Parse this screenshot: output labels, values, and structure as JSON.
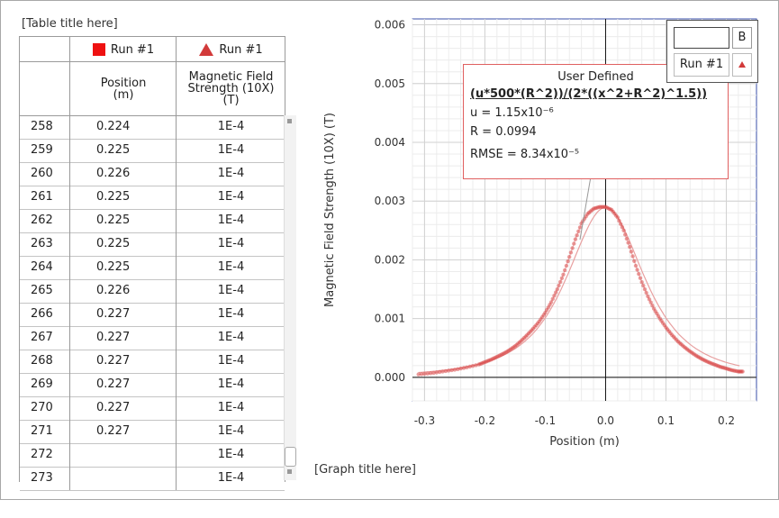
{
  "table": {
    "title": "[Table title here]",
    "run1_label": "Run #1",
    "run2_label": "Run #1",
    "col_position": "Position\n(m)",
    "col_field": "Magnetic Field\nStrength (10X)\n(T)",
    "rows": [
      {
        "n": "258",
        "p": "0.224",
        "m": "1E-4"
      },
      {
        "n": "259",
        "p": "0.225",
        "m": "1E-4"
      },
      {
        "n": "260",
        "p": "0.226",
        "m": "1E-4"
      },
      {
        "n": "261",
        "p": "0.225",
        "m": "1E-4"
      },
      {
        "n": "262",
        "p": "0.225",
        "m": "1E-4"
      },
      {
        "n": "263",
        "p": "0.225",
        "m": "1E-4"
      },
      {
        "n": "264",
        "p": "0.225",
        "m": "1E-4"
      },
      {
        "n": "265",
        "p": "0.226",
        "m": "1E-4"
      },
      {
        "n": "266",
        "p": "0.227",
        "m": "1E-4"
      },
      {
        "n": "267",
        "p": "0.227",
        "m": "1E-4"
      },
      {
        "n": "268",
        "p": "0.227",
        "m": "1E-4"
      },
      {
        "n": "269",
        "p": "0.227",
        "m": "1E-4"
      },
      {
        "n": "270",
        "p": "0.227",
        "m": "1E-4"
      },
      {
        "n": "271",
        "p": "0.227",
        "m": "1E-4"
      },
      {
        "n": "272",
        "p": "",
        "m": "1E-4"
      },
      {
        "n": "273",
        "p": "",
        "m": "1E-4"
      }
    ]
  },
  "graph": {
    "title": "[Graph title here]",
    "fit": {
      "title": "User Defined",
      "formula": "(u*500*(R^2))/(2*((x^2+R^2)^1.5))",
      "u": "u = 1.15x10⁻⁶",
      "R": "R = 0.0994",
      "rmse": "RMSE = 8.34x10⁻⁵"
    },
    "legend": {
      "button": "B",
      "run": "Run #1"
    },
    "series_color": "#d94a4a",
    "fit_color": "#e8a0a0"
  },
  "chart_data": {
    "type": "scatter",
    "xlabel": "Position (m)",
    "ylabel": "Magnetic Field Strength (10X) (T)",
    "xlim": [
      -0.32,
      0.25
    ],
    "ylim": [
      -0.0004,
      0.0061
    ],
    "xticks": [
      "-0.3",
      "-0.2",
      "-0.1",
      "0.0",
      "0.1",
      "0.2"
    ],
    "xtick_values": [
      -0.3,
      -0.2,
      -0.1,
      0.0,
      0.1,
      0.2
    ],
    "yticks": [
      "0.000",
      "0.001",
      "0.002",
      "0.003",
      "0.004",
      "0.005",
      "0.006"
    ],
    "ytick_values": [
      0,
      0.001,
      0.002,
      0.003,
      0.004,
      0.005,
      0.006
    ],
    "series": [
      {
        "name": "Run #1",
        "x": [
          -0.31,
          -0.29,
          -0.27,
          -0.25,
          -0.23,
          -0.21,
          -0.2,
          -0.19,
          -0.18,
          -0.17,
          -0.16,
          -0.15,
          -0.14,
          -0.13,
          -0.12,
          -0.11,
          -0.1,
          -0.09,
          -0.08,
          -0.07,
          -0.06,
          -0.05,
          -0.04,
          -0.03,
          -0.02,
          -0.01,
          0.0,
          0.01,
          0.02,
          0.03,
          0.04,
          0.05,
          0.06,
          0.07,
          0.08,
          0.09,
          0.1,
          0.11,
          0.12,
          0.13,
          0.14,
          0.15,
          0.16,
          0.17,
          0.18,
          0.19,
          0.2,
          0.21,
          0.22,
          0.227
        ],
        "y": [
          5e-05,
          7e-05,
          0.0001,
          0.00013,
          0.00017,
          0.00022,
          0.00026,
          0.0003,
          0.00035,
          0.0004,
          0.00046,
          0.00053,
          0.00062,
          0.00072,
          0.00083,
          0.00095,
          0.0011,
          0.00128,
          0.0015,
          0.00175,
          0.00205,
          0.00235,
          0.00262,
          0.00278,
          0.00287,
          0.0029,
          0.0029,
          0.00285,
          0.00272,
          0.0025,
          0.00222,
          0.0019,
          0.00162,
          0.00138,
          0.00117,
          0.001,
          0.00085,
          0.00072,
          0.00061,
          0.00052,
          0.00044,
          0.00037,
          0.00031,
          0.00026,
          0.00022,
          0.00018,
          0.00015,
          0.00012,
          0.0001,
          0.0001
        ]
      }
    ],
    "fit_series": {
      "name": "User Defined",
      "u": 1.15e-06,
      "R": 0.0994
    }
  }
}
